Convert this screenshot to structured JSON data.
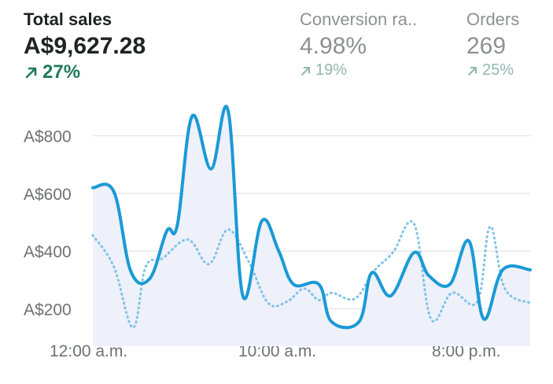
{
  "metrics": {
    "total_sales": {
      "label": "Total sales",
      "value": "A$9,627.28",
      "change": "27%",
      "direction": "up"
    },
    "conversion_rate": {
      "label": "Conversion ra..",
      "value": "4.98%",
      "change": "19%",
      "direction": "up"
    },
    "orders": {
      "label": "Orders",
      "value": "269",
      "change": "25%",
      "direction": "up"
    }
  },
  "colors": {
    "primary_line": "#1a9ad6",
    "comparison_line": "#7fc3e6",
    "area_fill": "#eef0fa",
    "positive": "#1f7a5a",
    "gridline": "#e1e3e5"
  },
  "chart_data": {
    "type": "line",
    "x_tick_labels": [
      "12:00 a.m.",
      "10:00 a.m.",
      "8:00 p.m."
    ],
    "y_tick_labels": [
      "A$200",
      "A$400",
      "A$600",
      "A$800"
    ],
    "y_ticks": [
      200,
      400,
      600,
      800
    ],
    "ylim": [
      70,
      900
    ],
    "grid": true,
    "series": [
      {
        "style": "solid",
        "values": [
          [
            0.0,
            620
          ],
          [
            1.0,
            605
          ],
          [
            1.8,
            330
          ],
          [
            2.7,
            305
          ],
          [
            3.5,
            470
          ],
          [
            4.0,
            490
          ],
          [
            4.7,
            868
          ],
          [
            5.6,
            685
          ],
          [
            6.4,
            888
          ],
          [
            7.1,
            245
          ],
          [
            8.0,
            505
          ],
          [
            8.8,
            400
          ],
          [
            9.5,
            285
          ],
          [
            10.7,
            285
          ],
          [
            11.3,
            155
          ],
          [
            12.6,
            155
          ],
          [
            13.2,
            325
          ],
          [
            14.1,
            245
          ],
          [
            15.2,
            395
          ],
          [
            15.9,
            315
          ],
          [
            16.9,
            285
          ],
          [
            17.8,
            435
          ],
          [
            18.5,
            165
          ],
          [
            19.4,
            335
          ],
          [
            20.7,
            335
          ]
        ]
      },
      {
        "style": "dotted",
        "values": [
          [
            0.0,
            455
          ],
          [
            1.0,
            345
          ],
          [
            1.9,
            135
          ],
          [
            2.5,
            345
          ],
          [
            3.3,
            375
          ],
          [
            4.5,
            440
          ],
          [
            5.5,
            355
          ],
          [
            6.4,
            475
          ],
          [
            7.4,
            360
          ],
          [
            8.3,
            220
          ],
          [
            9.2,
            225
          ],
          [
            10.0,
            270
          ],
          [
            10.7,
            230
          ],
          [
            11.3,
            255
          ],
          [
            12.4,
            235
          ],
          [
            13.3,
            330
          ],
          [
            14.2,
            395
          ],
          [
            15.2,
            495
          ],
          [
            16.0,
            165
          ],
          [
            17.0,
            255
          ],
          [
            18.2,
            225
          ],
          [
            18.8,
            485
          ],
          [
            19.5,
            270
          ],
          [
            20.7,
            220
          ]
        ]
      }
    ]
  }
}
